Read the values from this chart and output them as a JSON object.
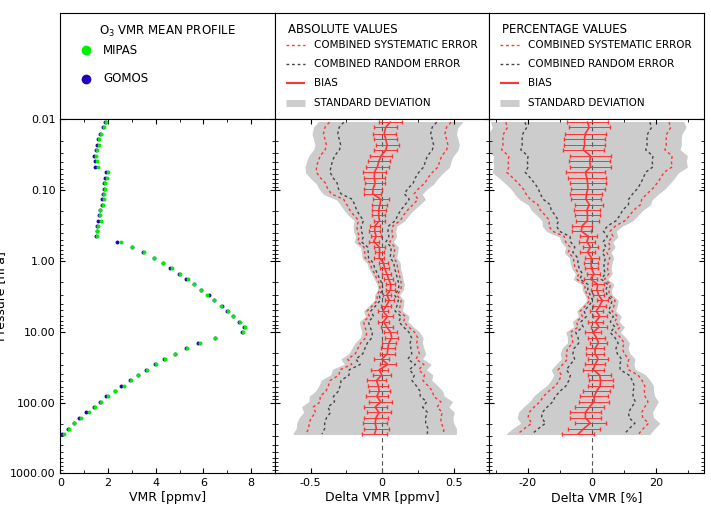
{
  "title_left": "O$_3$ VMR MEAN PROFILE",
  "title_mid": "ABSOLUTE VALUES",
  "title_right": "PERCENTAGE VALUES",
  "mipas_color": "#00ee00",
  "gomos_color": "#2200bb",
  "sys_err_color": "#ff3333",
  "rand_err_color": "#444444",
  "bias_color": "#ff3333",
  "std_color": "#cccccc",
  "xlabel_left": "VMR [ppmv]",
  "xlabel_mid": "Delta VMR [ppmv]",
  "xlabel_right": "Delta VMR [%]",
  "ylabel": "Pressure [hPa]",
  "xlim_left": [
    0,
    9
  ],
  "xlim_mid": [
    -0.75,
    0.75
  ],
  "xlim_right": [
    -32,
    35
  ],
  "xticks_left": [
    0,
    2,
    4,
    6,
    8
  ],
  "xticks_mid": [
    -0.5,
    0.0,
    0.5
  ],
  "xticks_right": [
    -20,
    0,
    20
  ],
  "bg_color": "#ffffff"
}
